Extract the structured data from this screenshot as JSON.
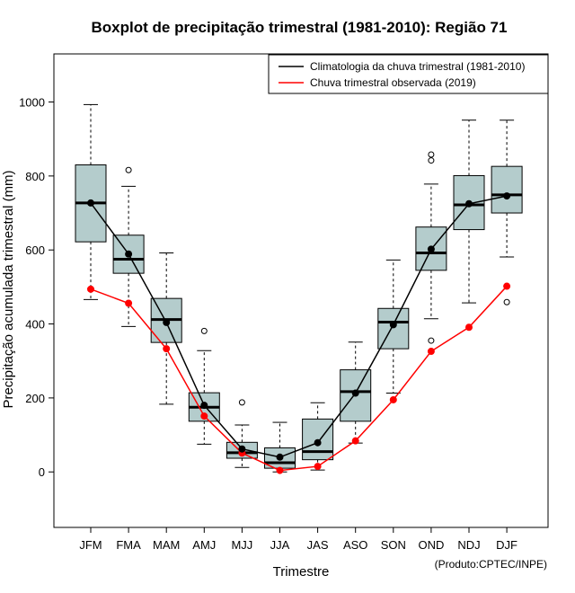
{
  "chart_data": {
    "type": "boxplot",
    "title": "Boxplot de precipitação trimestral (1981-2010): Região 71",
    "xlabel": "Trimestre",
    "ylabel": "Precipitação acumulada trimestral (mm)",
    "ylim": [
      -150,
      1130
    ],
    "yticks": [
      0,
      200,
      400,
      600,
      800,
      1000
    ],
    "categories": [
      "JFM",
      "FMA",
      "MAM",
      "AMJ",
      "MJJ",
      "JJA",
      "JAS",
      "ASO",
      "SON",
      "OND",
      "NDJ",
      "DJF"
    ],
    "boxes": [
      {
        "lower_whisker": 466,
        "q1": 622,
        "median": 727,
        "q3": 830,
        "upper_whisker": 993,
        "outliers": []
      },
      {
        "lower_whisker": 393,
        "q1": 537,
        "median": 575,
        "q3": 640,
        "upper_whisker": 772,
        "outliers": [
          816
        ]
      },
      {
        "lower_whisker": 183,
        "q1": 350,
        "median": 412,
        "q3": 469,
        "upper_whisker": 592,
        "outliers": []
      },
      {
        "lower_whisker": 75,
        "q1": 137,
        "median": 175,
        "q3": 214,
        "upper_whisker": 328,
        "outliers": [
          381
        ]
      },
      {
        "lower_whisker": 12,
        "q1": 37,
        "median": 52,
        "q3": 80,
        "upper_whisker": 127,
        "outliers": [
          188
        ]
      },
      {
        "lower_whisker": 0,
        "q1": 10,
        "median": 25,
        "q3": 65,
        "upper_whisker": 134,
        "outliers": []
      },
      {
        "lower_whisker": 5,
        "q1": 33,
        "median": 55,
        "q3": 143,
        "upper_whisker": 187,
        "outliers": []
      },
      {
        "lower_whisker": 78,
        "q1": 137,
        "median": 217,
        "q3": 276,
        "upper_whisker": 351,
        "outliers": []
      },
      {
        "lower_whisker": 213,
        "q1": 333,
        "median": 405,
        "q3": 442,
        "upper_whisker": 573,
        "outliers": []
      },
      {
        "lower_whisker": 414,
        "q1": 545,
        "median": 592,
        "q3": 662,
        "upper_whisker": 778,
        "outliers": [
          355,
          842,
          858
        ]
      },
      {
        "lower_whisker": 457,
        "q1": 655,
        "median": 722,
        "q3": 801,
        "upper_whisker": 951,
        "outliers": []
      },
      {
        "lower_whisker": 581,
        "q1": 700,
        "median": 749,
        "q3": 826,
        "upper_whisker": 951,
        "outliers": [
          459
        ]
      }
    ],
    "series": [
      {
        "name": "Climatologia da chuva trimestral (1981-2010)",
        "color": "#000000",
        "values": [
          727,
          589,
          404,
          180,
          62,
          40,
          79,
          213,
          398,
          602,
          725,
          746
        ]
      },
      {
        "name": "Chuva trimestral observada (2019)",
        "color": "#ff0000",
        "values": [
          494,
          456,
          333,
          151,
          51,
          4,
          15,
          84,
          195,
          326,
          391,
          502
        ]
      }
    ],
    "box_fill": "#b4cccc",
    "legend_position": "top-right",
    "note": "(Produto:CPTEC/INPE)"
  }
}
